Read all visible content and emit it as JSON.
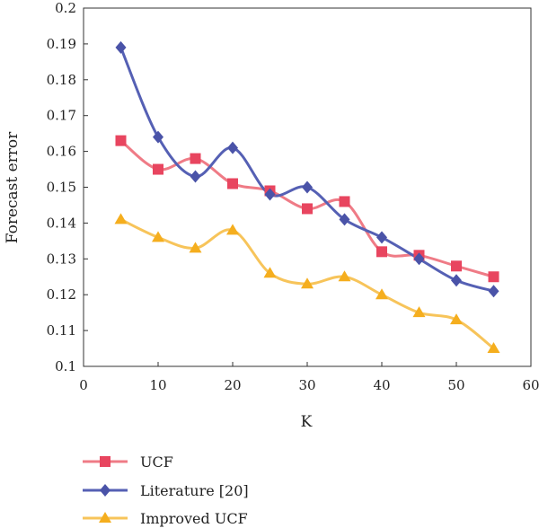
{
  "chart_data": {
    "type": "line",
    "title": "",
    "xlabel": "K",
    "ylabel": "Forecast error",
    "xlim": [
      0,
      60
    ],
    "ylim": [
      0.1,
      0.2
    ],
    "xticks": [
      "0",
      "10",
      "20",
      "30",
      "40",
      "50",
      "60"
    ],
    "yticks": [
      "0.1",
      "0.11",
      "0.12",
      "0.13",
      "0.14",
      "0.15",
      "0.16",
      "0.17",
      "0.18",
      "0.19",
      "0.2"
    ],
    "x": [
      5,
      10,
      15,
      20,
      25,
      30,
      35,
      40,
      45,
      50,
      55
    ],
    "grid": false,
    "legend_position": "bottom",
    "series": [
      {
        "name": "UCF",
        "color": "#e8455f",
        "line_color": "#ef7b86",
        "marker": "square",
        "values": [
          0.163,
          0.155,
          0.158,
          0.151,
          0.149,
          0.144,
          0.146,
          0.132,
          0.131,
          0.128,
          0.125
        ]
      },
      {
        "name": "Literature [20]",
        "color": "#4a53a8",
        "line_color": "#5560b4",
        "marker": "diamond",
        "values": [
          0.189,
          0.164,
          0.153,
          0.161,
          0.148,
          0.15,
          0.141,
          0.136,
          0.13,
          0.124,
          0.121
        ]
      },
      {
        "name": "Improved UCF",
        "color": "#f5ae1e",
        "line_color": "#f7c45a",
        "marker": "triangle",
        "values": [
          0.141,
          0.136,
          0.133,
          0.138,
          0.126,
          0.123,
          0.125,
          0.12,
          0.115,
          0.113,
          0.105
        ]
      }
    ]
  }
}
